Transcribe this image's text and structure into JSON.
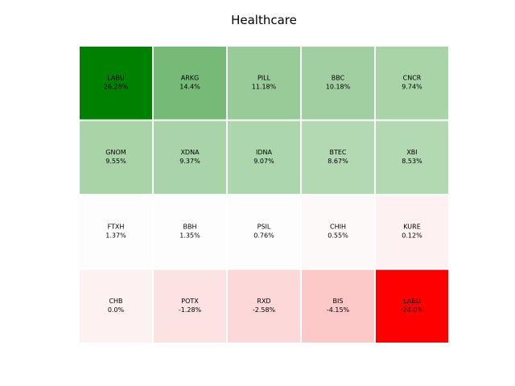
{
  "chart_data": {
    "type": "heatmap",
    "title": "Healthcare",
    "grid": false,
    "rows": [
      [
        {
          "ticker": "LABU",
          "value": "26.28%",
          "color": "#008000"
        },
        {
          "ticker": "ARKG",
          "value": "14.4%",
          "color": "#77b977"
        },
        {
          "ticker": "PILL",
          "value": "11.18%",
          "color": "#99cb99"
        },
        {
          "ticker": "BBC",
          "value": "10.18%",
          "color": "#a1cfa1"
        },
        {
          "ticker": "CNCR",
          "value": "9.74%",
          "color": "#a8d4a8"
        }
      ],
      [
        {
          "ticker": "GNOM",
          "value": "9.55%",
          "color": "#a8d4a8"
        },
        {
          "ticker": "XDNA",
          "value": "9.37%",
          "color": "#a9d4a9"
        },
        {
          "ticker": "IDNA",
          "value": "9.07%",
          "color": "#acd6ac"
        },
        {
          "ticker": "BTEC",
          "value": "8.67%",
          "color": "#b3d9b3"
        },
        {
          "ticker": "XBI",
          "value": "8.53%",
          "color": "#b3d9b3"
        }
      ],
      [
        {
          "ticker": "FTXH",
          "value": "1.37%",
          "color": "#fdfdfd"
        },
        {
          "ticker": "BBH",
          "value": "1.35%",
          "color": "#fdfdfd"
        },
        {
          "ticker": "PSIL",
          "value": "0.76%",
          "color": "#fefdfd"
        },
        {
          "ticker": "CHIH",
          "value": "0.55%",
          "color": "#fef9f9"
        },
        {
          "ticker": "KURE",
          "value": "0.12%",
          "color": "#fef1f1"
        }
      ],
      [
        {
          "ticker": "CHB",
          "value": "0.0%",
          "color": "#fef1f1"
        },
        {
          "ticker": "POTX",
          "value": "-1.28%",
          "color": "#fde2e2"
        },
        {
          "ticker": "RXD",
          "value": "-2.58%",
          "color": "#fdd8d8"
        },
        {
          "ticker": "BIS",
          "value": "-4.15%",
          "color": "#fcc8c8"
        },
        {
          "ticker": "LABD",
          "value": "-24.0%",
          "color": "#ff0000"
        }
      ]
    ]
  }
}
